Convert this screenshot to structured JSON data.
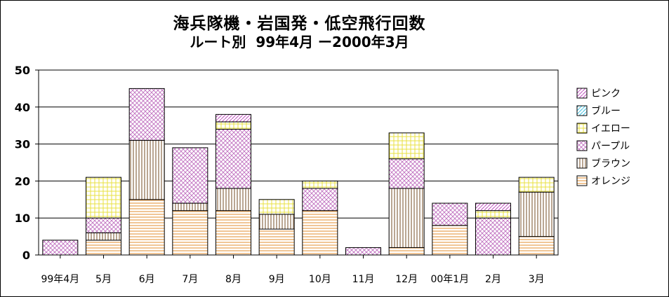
{
  "chart_data": {
    "type": "bar",
    "stacked": true,
    "title": "海兵隊機・岩国発・低空飛行回数",
    "subtitle": "ルート別  99年4月 ー2000年3月",
    "categories": [
      "99年4月",
      "5月",
      "6月",
      "7月",
      "8月",
      "9月",
      "10月",
      "11月",
      "12月",
      "00年1月",
      "2月",
      "3月"
    ],
    "ylim": [
      0,
      50
    ],
    "yticks": [
      0,
      10,
      20,
      30,
      40,
      50
    ],
    "grid": true,
    "legend_position": "right",
    "series": [
      {
        "name": "オレンジ",
        "color": "#e8a050",
        "pattern": "horizontal-lines",
        "values": [
          0,
          4,
          15,
          12,
          12,
          7,
          12,
          0,
          2,
          8,
          0,
          5
        ]
      },
      {
        "name": "ブラウン",
        "color": "#8b6a4a",
        "pattern": "vertical-lines",
        "values": [
          0,
          2,
          16,
          2,
          6,
          4,
          0,
          0,
          16,
          0,
          0,
          12
        ]
      },
      {
        "name": "パープル",
        "color": "#c070c0",
        "pattern": "crosshatch",
        "values": [
          4,
          4,
          14,
          15,
          16,
          0,
          6,
          2,
          8,
          6,
          10,
          0
        ]
      },
      {
        "name": "イエロー",
        "color": "#e8e040",
        "pattern": "grid",
        "values": [
          0,
          11,
          0,
          0,
          2,
          4,
          2,
          0,
          7,
          0,
          2,
          4
        ]
      },
      {
        "name": "ブルー",
        "color": "#40c0e0",
        "pattern": "diagonal",
        "values": [
          0,
          0,
          0,
          0,
          0,
          0,
          0,
          0,
          0,
          0,
          0,
          0
        ]
      },
      {
        "name": "ピンク",
        "color": "#c050c0",
        "pattern": "diagonal",
        "values": [
          0,
          0,
          0,
          0,
          2,
          0,
          0,
          0,
          0,
          0,
          2,
          0
        ]
      }
    ]
  }
}
